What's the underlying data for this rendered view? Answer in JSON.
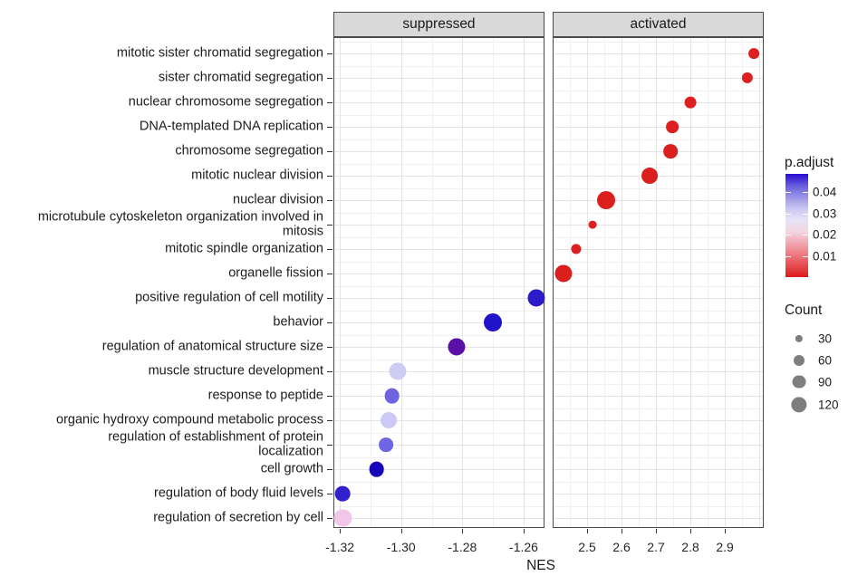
{
  "chart_data": {
    "type": "scatter",
    "title": "",
    "xlabel": "NES",
    "grid": true,
    "legend_position": "right",
    "facets": [
      {
        "label": "suppressed",
        "x_domain": [
          -1.3221,
          -1.2532
        ],
        "x_ticks": [
          -1.32,
          -1.3,
          -1.28,
          -1.26
        ],
        "x_tick_labels": [
          "-1.32",
          "-1.30",
          "-1.28",
          "-1.26"
        ],
        "x_grid_extra": [],
        "x_minor_step": 0.01
      },
      {
        "label": "activated",
        "x_domain": [
          2.4,
          3.013
        ],
        "x_ticks": [
          2.5,
          2.6,
          2.7,
          2.8,
          2.9
        ],
        "x_tick_labels": [
          "2.5",
          "2.6",
          "2.7",
          "2.8",
          "2.9"
        ],
        "x_grid_extra": [
          3.0
        ],
        "x_minor_step": 0.05
      }
    ],
    "categories": [
      "mitotic sister chromatid segregation",
      "sister chromatid segregation",
      "nuclear chromosome segregation",
      "DNA-templated DNA replication",
      "chromosome segregation",
      "mitotic nuclear division",
      "nuclear division",
      "microtubule cytoskeleton organization involved in\nmitosis",
      "mitotic spindle organization",
      "organelle fission",
      "positive regulation of cell motility",
      "behavior",
      "regulation of anatomical structure size",
      "muscle structure development",
      "response to peptide",
      "organic hydroxy compound metabolic process",
      "regulation of establishment of protein\nlocalization",
      "cell growth",
      "regulation of body fluid levels",
      "regulation of secretion by cell"
    ],
    "points": [
      {
        "category": 0,
        "facet": 1,
        "nes": 2.984,
        "count": 58,
        "p_adjust": 0.003,
        "color": "#DC2020"
      },
      {
        "category": 1,
        "facet": 1,
        "nes": 2.966,
        "count": 62,
        "p_adjust": 0.003,
        "color": "#DC2020"
      },
      {
        "category": 2,
        "facet": 1,
        "nes": 2.8,
        "count": 68,
        "p_adjust": 0.003,
        "color": "#DC2020"
      },
      {
        "category": 3,
        "facet": 1,
        "nes": 2.747,
        "count": 78,
        "p_adjust": 0.004,
        "color": "#DC2020"
      },
      {
        "category": 4,
        "facet": 1,
        "nes": 2.742,
        "count": 100,
        "p_adjust": 0.003,
        "color": "#DB1E1E"
      },
      {
        "category": 5,
        "facet": 1,
        "nes": 2.681,
        "count": 128,
        "p_adjust": 0.003,
        "color": "#DB1E1E"
      },
      {
        "category": 6,
        "facet": 1,
        "nes": 2.555,
        "count": 158,
        "p_adjust": 0.003,
        "color": "#DB1E1E"
      },
      {
        "category": 7,
        "facet": 1,
        "nes": 2.516,
        "count": 34,
        "p_adjust": 0.005,
        "color": "#DC2020"
      },
      {
        "category": 8,
        "facet": 1,
        "nes": 2.468,
        "count": 52,
        "p_adjust": 0.004,
        "color": "#DC2020"
      },
      {
        "category": 9,
        "facet": 1,
        "nes": 2.432,
        "count": 145,
        "p_adjust": 0.003,
        "color": "#DB1E1E"
      },
      {
        "category": 10,
        "facet": 0,
        "nes": -1.256,
        "count": 145,
        "p_adjust": 0.044,
        "color": "#2B1BC8"
      },
      {
        "category": 11,
        "facet": 0,
        "nes": -1.27,
        "count": 158,
        "p_adjust": 0.045,
        "color": "#1F14C9"
      },
      {
        "category": 12,
        "facet": 0,
        "nes": -1.282,
        "count": 145,
        "p_adjust": 0.041,
        "color": "#5A10A6"
      },
      {
        "category": 13,
        "facet": 0,
        "nes": -1.301,
        "count": 145,
        "p_adjust": 0.03,
        "color": "#CDCCF5"
      },
      {
        "category": 14,
        "facet": 0,
        "nes": -1.303,
        "count": 112,
        "p_adjust": 0.036,
        "color": "#6E63E0"
      },
      {
        "category": 15,
        "facet": 0,
        "nes": -1.304,
        "count": 128,
        "p_adjust": 0.03,
        "color": "#CCCAF5"
      },
      {
        "category": 16,
        "facet": 0,
        "nes": -1.305,
        "count": 100,
        "p_adjust": 0.036,
        "color": "#6E66E3"
      },
      {
        "category": 17,
        "facet": 0,
        "nes": -1.308,
        "count": 112,
        "p_adjust": 0.048,
        "color": "#1504B8"
      },
      {
        "category": 18,
        "facet": 0,
        "nes": -1.319,
        "count": 112,
        "p_adjust": 0.045,
        "color": "#3020CE"
      },
      {
        "category": 19,
        "facet": 0,
        "nes": -1.319,
        "count": 145,
        "p_adjust": 0.018,
        "color": "#F2C6E8"
      }
    ],
    "color_legend": {
      "title": "p.adjust",
      "domain_top": 0.0485,
      "domain_bottom": 0.0003,
      "ticks": [
        0.04,
        0.03,
        0.02,
        0.01
      ],
      "tick_labels": [
        "0.04",
        "0.03",
        "0.02",
        "0.01"
      ],
      "gradient": [
        "#2A0AD2",
        "#6659DC",
        "#9A92E8",
        "#C9C5F1",
        "#E6E3F7",
        "#F4D7E2",
        "#F2A8B2",
        "#EE7B82",
        "#E64C4F",
        "#DC1A1A"
      ]
    },
    "size_legend": {
      "title": "Count",
      "values": [
        30,
        60,
        90,
        120
      ],
      "labels": [
        "30",
        "60",
        "90",
        "120"
      ],
      "dot_color": "#7E7E7E"
    }
  },
  "colors": {
    "strip_bg": "#D9D9D9",
    "panel_border": "#4A4A4A",
    "grid_major": "#E4E4E4",
    "grid_minor": "#F1F1F1",
    "axis_text": "#262626",
    "tick_mark": "#333333"
  }
}
